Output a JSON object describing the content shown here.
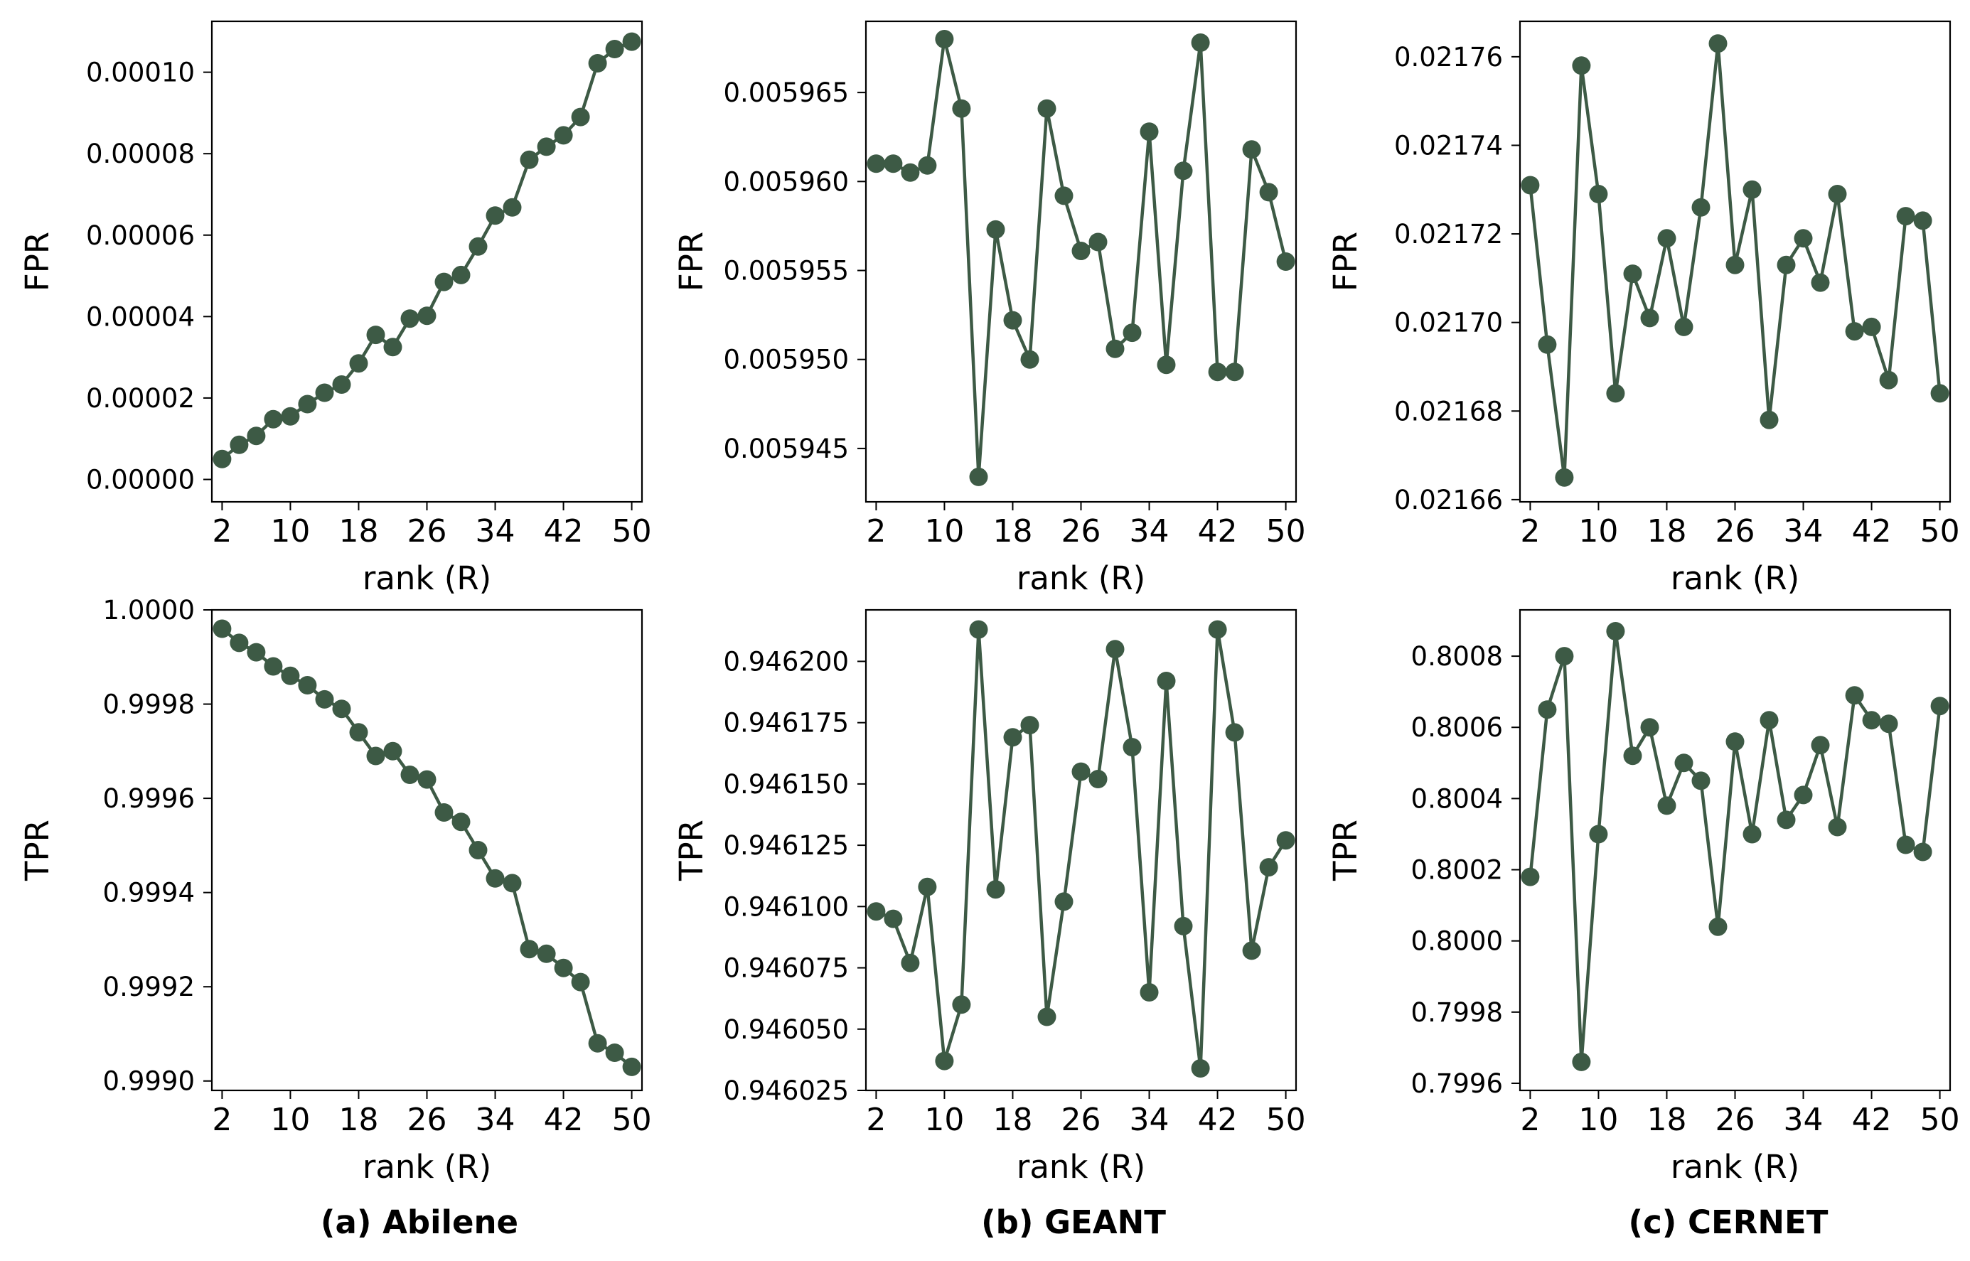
{
  "style": {
    "line_color": "#3d5a45",
    "marker_color": "#3d5a45"
  },
  "captions": [
    "(a) Abilene",
    "(b) GEANT",
    "(c) CERNET"
  ],
  "chart_data": [
    {
      "id": "abilene-fpr",
      "type": "line",
      "group": "(a) Abilene",
      "xlabel": "rank (R)",
      "ylabel": "FPR",
      "x": [
        2,
        4,
        6,
        8,
        10,
        12,
        14,
        16,
        18,
        20,
        22,
        24,
        26,
        28,
        30,
        32,
        34,
        36,
        38,
        40,
        42,
        44,
        46,
        48,
        50
      ],
      "y": [
        5e-06,
        8.5e-06,
        1.07e-05,
        1.48e-05,
        1.55e-05,
        1.85e-05,
        2.13e-05,
        2.33e-05,
        2.85e-05,
        3.55e-05,
        3.25e-05,
        3.95e-05,
        4.02e-05,
        4.85e-05,
        5.02e-05,
        5.72e-05,
        6.48e-05,
        6.68e-05,
        7.85e-05,
        8.17e-05,
        8.45e-05,
        8.9e-05,
        0.0001022,
        0.0001057,
        0.0001075
      ],
      "xticks": [
        2,
        10,
        18,
        26,
        34,
        42,
        50
      ],
      "xticklabels": [
        "2",
        "10",
        "18",
        "26",
        "34",
        "42",
        "50"
      ],
      "yticks": [
        0,
        2e-05,
        4e-05,
        6e-05,
        8e-05,
        0.0001
      ],
      "yticklabels": [
        "0.00000",
        "0.00002",
        "0.00004",
        "0.00006",
        "0.00008",
        "0.00010"
      ],
      "xlim": [
        0.8,
        51.2
      ],
      "ylim": [
        -5.5e-06,
        0.0001125
      ],
      "grid": false,
      "legend": false
    },
    {
      "id": "geant-fpr",
      "type": "line",
      "group": "(b) GEANT",
      "xlabel": "rank (R)",
      "ylabel": "FPR",
      "x": [
        2,
        4,
        6,
        8,
        10,
        12,
        14,
        16,
        18,
        20,
        22,
        24,
        26,
        28,
        30,
        32,
        34,
        36,
        38,
        40,
        42,
        44,
        46,
        48,
        50
      ],
      "y": [
        0.005961,
        0.005961,
        0.0059605,
        0.0059609,
        0.005968,
        0.0059641,
        0.0059434,
        0.0059573,
        0.0059522,
        0.00595,
        0.0059641,
        0.0059592,
        0.0059561,
        0.0059566,
        0.0059506,
        0.0059515,
        0.0059628,
        0.0059497,
        0.0059606,
        0.0059678,
        0.0059493,
        0.0059493,
        0.0059618,
        0.0059594,
        0.0059555
      ],
      "xticks": [
        2,
        10,
        18,
        26,
        34,
        42,
        50
      ],
      "xticklabels": [
        "2",
        "10",
        "18",
        "26",
        "34",
        "42",
        "50"
      ],
      "yticks": [
        0.005945,
        0.00595,
        0.005955,
        0.00596,
        0.005965
      ],
      "yticklabels": [
        "0.005945",
        "0.005950",
        "0.005955",
        "0.005960",
        "0.005965"
      ],
      "xlim": [
        0.8,
        51.2
      ],
      "ylim": [
        0.005942,
        0.005969
      ],
      "grid": false,
      "legend": false
    },
    {
      "id": "cernet-fpr",
      "type": "line",
      "group": "(c) CERNET",
      "xlabel": "rank (R)",
      "ylabel": "FPR",
      "x": [
        2,
        4,
        6,
        8,
        10,
        12,
        14,
        16,
        18,
        20,
        22,
        24,
        26,
        28,
        30,
        32,
        34,
        36,
        38,
        40,
        42,
        44,
        46,
        48,
        50
      ],
      "y": [
        0.021731,
        0.021695,
        0.021665,
        0.021758,
        0.021729,
        0.021684,
        0.021711,
        0.021701,
        0.021719,
        0.021699,
        0.021726,
        0.021763,
        0.021713,
        0.02173,
        0.021678,
        0.021713,
        0.021719,
        0.021709,
        0.021729,
        0.021698,
        0.021699,
        0.021687,
        0.021724,
        0.021723,
        0.021684
      ],
      "xticks": [
        2,
        10,
        18,
        26,
        34,
        42,
        50
      ],
      "xticklabels": [
        "2",
        "10",
        "18",
        "26",
        "34",
        "42",
        "50"
      ],
      "yticks": [
        0.02166,
        0.02168,
        0.0217,
        0.02172,
        0.02174,
        0.02176
      ],
      "yticklabels": [
        "0.02166",
        "0.02168",
        "0.02170",
        "0.02172",
        "0.02174",
        "0.02176"
      ],
      "xlim": [
        0.8,
        51.2
      ],
      "ylim": [
        0.0216595,
        0.021768
      ],
      "grid": false,
      "legend": false
    },
    {
      "id": "abilene-tpr",
      "type": "line",
      "group": "(a) Abilene",
      "xlabel": "rank (R)",
      "ylabel": "TPR",
      "x": [
        2,
        4,
        6,
        8,
        10,
        12,
        14,
        16,
        18,
        20,
        22,
        24,
        26,
        28,
        30,
        32,
        34,
        36,
        38,
        40,
        42,
        44,
        46,
        48,
        50
      ],
      "y": [
        0.99996,
        0.99993,
        0.99991,
        0.99988,
        0.99986,
        0.99984,
        0.99981,
        0.99979,
        0.99974,
        0.99969,
        0.9997,
        0.99965,
        0.99964,
        0.99957,
        0.99955,
        0.99949,
        0.99943,
        0.99942,
        0.99928,
        0.99927,
        0.99924,
        0.99921,
        0.99908,
        0.99906,
        0.99903
      ],
      "xticks": [
        2,
        10,
        18,
        26,
        34,
        42,
        50
      ],
      "xticklabels": [
        "2",
        "10",
        "18",
        "26",
        "34",
        "42",
        "50"
      ],
      "yticks": [
        0.999,
        0.9992,
        0.9994,
        0.9996,
        0.9998,
        1
      ],
      "yticklabels": [
        "0.9990",
        "0.9992",
        "0.9994",
        "0.9996",
        "0.9998",
        "1.0000"
      ],
      "xlim": [
        0.8,
        51.2
      ],
      "ylim": [
        0.99898,
        1.0
      ],
      "grid": false,
      "legend": false
    },
    {
      "id": "geant-tpr",
      "type": "line",
      "group": "(b) GEANT",
      "xlabel": "rank (R)",
      "ylabel": "TPR",
      "x": [
        2,
        4,
        6,
        8,
        10,
        12,
        14,
        16,
        18,
        20,
        22,
        24,
        26,
        28,
        30,
        32,
        34,
        36,
        38,
        40,
        42,
        44,
        46,
        48,
        50
      ],
      "y": [
        0.946098,
        0.946095,
        0.946077,
        0.946108,
        0.946037,
        0.94606,
        0.946213,
        0.946107,
        0.946169,
        0.946174,
        0.946055,
        0.946102,
        0.946155,
        0.946152,
        0.946205,
        0.946165,
        0.946065,
        0.946192,
        0.946092,
        0.946034,
        0.946213,
        0.946171,
        0.946082,
        0.946116,
        0.946127
      ],
      "xticks": [
        2,
        10,
        18,
        26,
        34,
        42,
        50
      ],
      "xticklabels": [
        "2",
        "10",
        "18",
        "26",
        "34",
        "42",
        "50"
      ],
      "yticks": [
        0.946025,
        0.94605,
        0.946075,
        0.9461,
        0.946125,
        0.94615,
        0.946175,
        0.9462
      ],
      "yticklabels": [
        "0.946025",
        "0.946050",
        "0.946075",
        "0.946100",
        "0.946125",
        "0.946150",
        "0.946175",
        "0.946200"
      ],
      "xlim": [
        0.8,
        51.2
      ],
      "ylim": [
        0.946025,
        0.946221
      ],
      "grid": false,
      "legend": false
    },
    {
      "id": "cernet-tpr",
      "type": "line",
      "group": "(c) CERNET",
      "xlabel": "rank (R)",
      "ylabel": "TPR",
      "x": [
        2,
        4,
        6,
        8,
        10,
        12,
        14,
        16,
        18,
        20,
        22,
        24,
        26,
        28,
        30,
        32,
        34,
        36,
        38,
        40,
        42,
        44,
        46,
        48,
        50
      ],
      "y": [
        0.80018,
        0.80065,
        0.8008,
        0.79966,
        0.8003,
        0.80087,
        0.80052,
        0.8006,
        0.80038,
        0.8005,
        0.80045,
        0.80004,
        0.80056,
        0.8003,
        0.80062,
        0.80034,
        0.80041,
        0.80055,
        0.80032,
        0.80069,
        0.80062,
        0.80061,
        0.80027,
        0.80025,
        0.80066
      ],
      "xticks": [
        2,
        10,
        18,
        26,
        34,
        42,
        50
      ],
      "xticklabels": [
        "2",
        "10",
        "18",
        "26",
        "34",
        "42",
        "50"
      ],
      "yticks": [
        0.7996,
        0.7998,
        0.8,
        0.8002,
        0.8004,
        0.8006,
        0.8008
      ],
      "yticklabels": [
        "0.7996",
        "0.7998",
        "0.8000",
        "0.8002",
        "0.8004",
        "0.8006",
        "0.8008"
      ],
      "xlim": [
        0.8,
        51.2
      ],
      "ylim": [
        0.79958,
        0.80093
      ],
      "grid": false,
      "legend": false
    }
  ]
}
